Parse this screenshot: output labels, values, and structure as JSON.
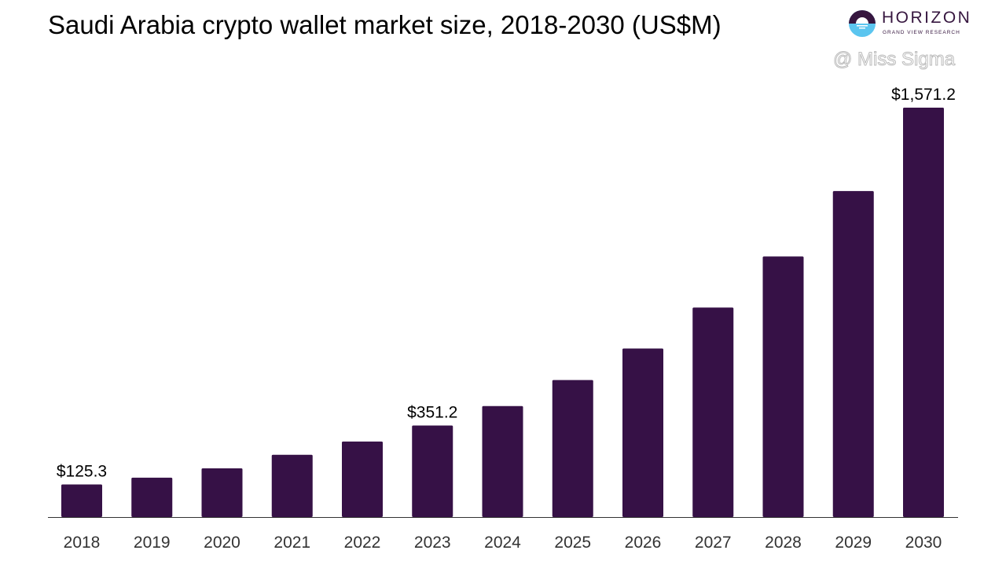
{
  "chart_data": {
    "type": "bar",
    "title": "Saudi Arabia crypto wallet market size, 2018-2030 (US$M)",
    "categories": [
      "2018",
      "2019",
      "2020",
      "2021",
      "2022",
      "2023",
      "2024",
      "2025",
      "2026",
      "2027",
      "2028",
      "2029",
      "2030"
    ],
    "values": [
      125.3,
      151,
      187,
      239,
      290,
      351.2,
      426,
      526,
      647,
      804,
      1000,
      1251,
      1571.2
    ],
    "data_labels": {
      "2018": "$125.3",
      "2023": "$351.2",
      "2030": "$1,571.2"
    },
    "xlabel": "",
    "ylabel": "",
    "ylim": [
      0,
      1600
    ],
    "grid": false,
    "bar_color": "#361146"
  },
  "logo": {
    "name": "HORIZON",
    "sub": "GRAND VIEW RESEARCH",
    "colors": {
      "dark": "#36163f",
      "light": "#5bc5ef"
    }
  },
  "watermark": "@ Miss Sigma"
}
